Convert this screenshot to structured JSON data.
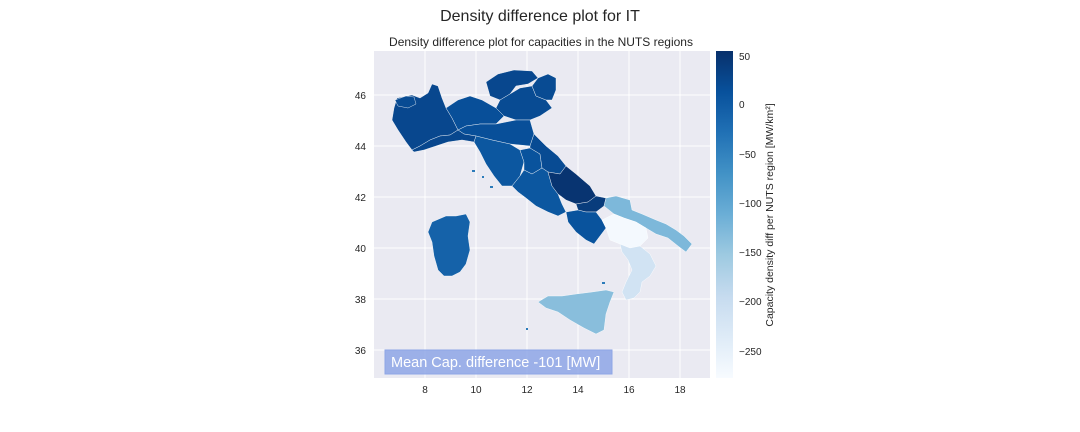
{
  "figure": {
    "suptitle": "Density difference plot for IT",
    "subtitle": "Density difference plot for capacities in the NUTS regions"
  },
  "map": {
    "x_ticks": [
      "8",
      "10",
      "12",
      "14",
      "16",
      "18"
    ],
    "y_ticks": [
      "46",
      "44",
      "42",
      "40",
      "38",
      "36"
    ],
    "annotation": "Mean Cap. difference -101 [MW]",
    "annotation_color": "#8ea6e6"
  },
  "colorbar": {
    "label": "Capacity density diff per NUTS region [MW/km²]",
    "ticks": [
      "50",
      "0",
      "−50",
      "−100",
      "−150",
      "−200",
      "−250"
    ],
    "colormap": "Blues",
    "min": -285,
    "max": 55
  },
  "regions": [
    {
      "name": "Piemonte",
      "value": 25
    },
    {
      "name": "Valle d'Aosta",
      "value": 20
    },
    {
      "name": "Liguria",
      "value": 15
    },
    {
      "name": "Lombardia",
      "value": 25
    },
    {
      "name": "Trentino-Alto Adige",
      "value": 20
    },
    {
      "name": "Veneto",
      "value": 20
    },
    {
      "name": "Friuli-Venezia Giulia",
      "value": 15
    },
    {
      "name": "Emilia-Romagna",
      "value": 25
    },
    {
      "name": "Toscana",
      "value": 5
    },
    {
      "name": "Umbria",
      "value": 10
    },
    {
      "name": "Marche",
      "value": 20
    },
    {
      "name": "Lazio",
      "value": 5
    },
    {
      "name": "Abruzzo",
      "value": 50
    },
    {
      "name": "Molise",
      "value": 40
    },
    {
      "name": "Campania",
      "value": 10
    },
    {
      "name": "Puglia",
      "value": -130
    },
    {
      "name": "Basilicata",
      "value": -280
    },
    {
      "name": "Calabria",
      "value": -220
    },
    {
      "name": "Sicilia",
      "value": -140
    },
    {
      "name": "Sardegna",
      "value": -10
    }
  ]
}
